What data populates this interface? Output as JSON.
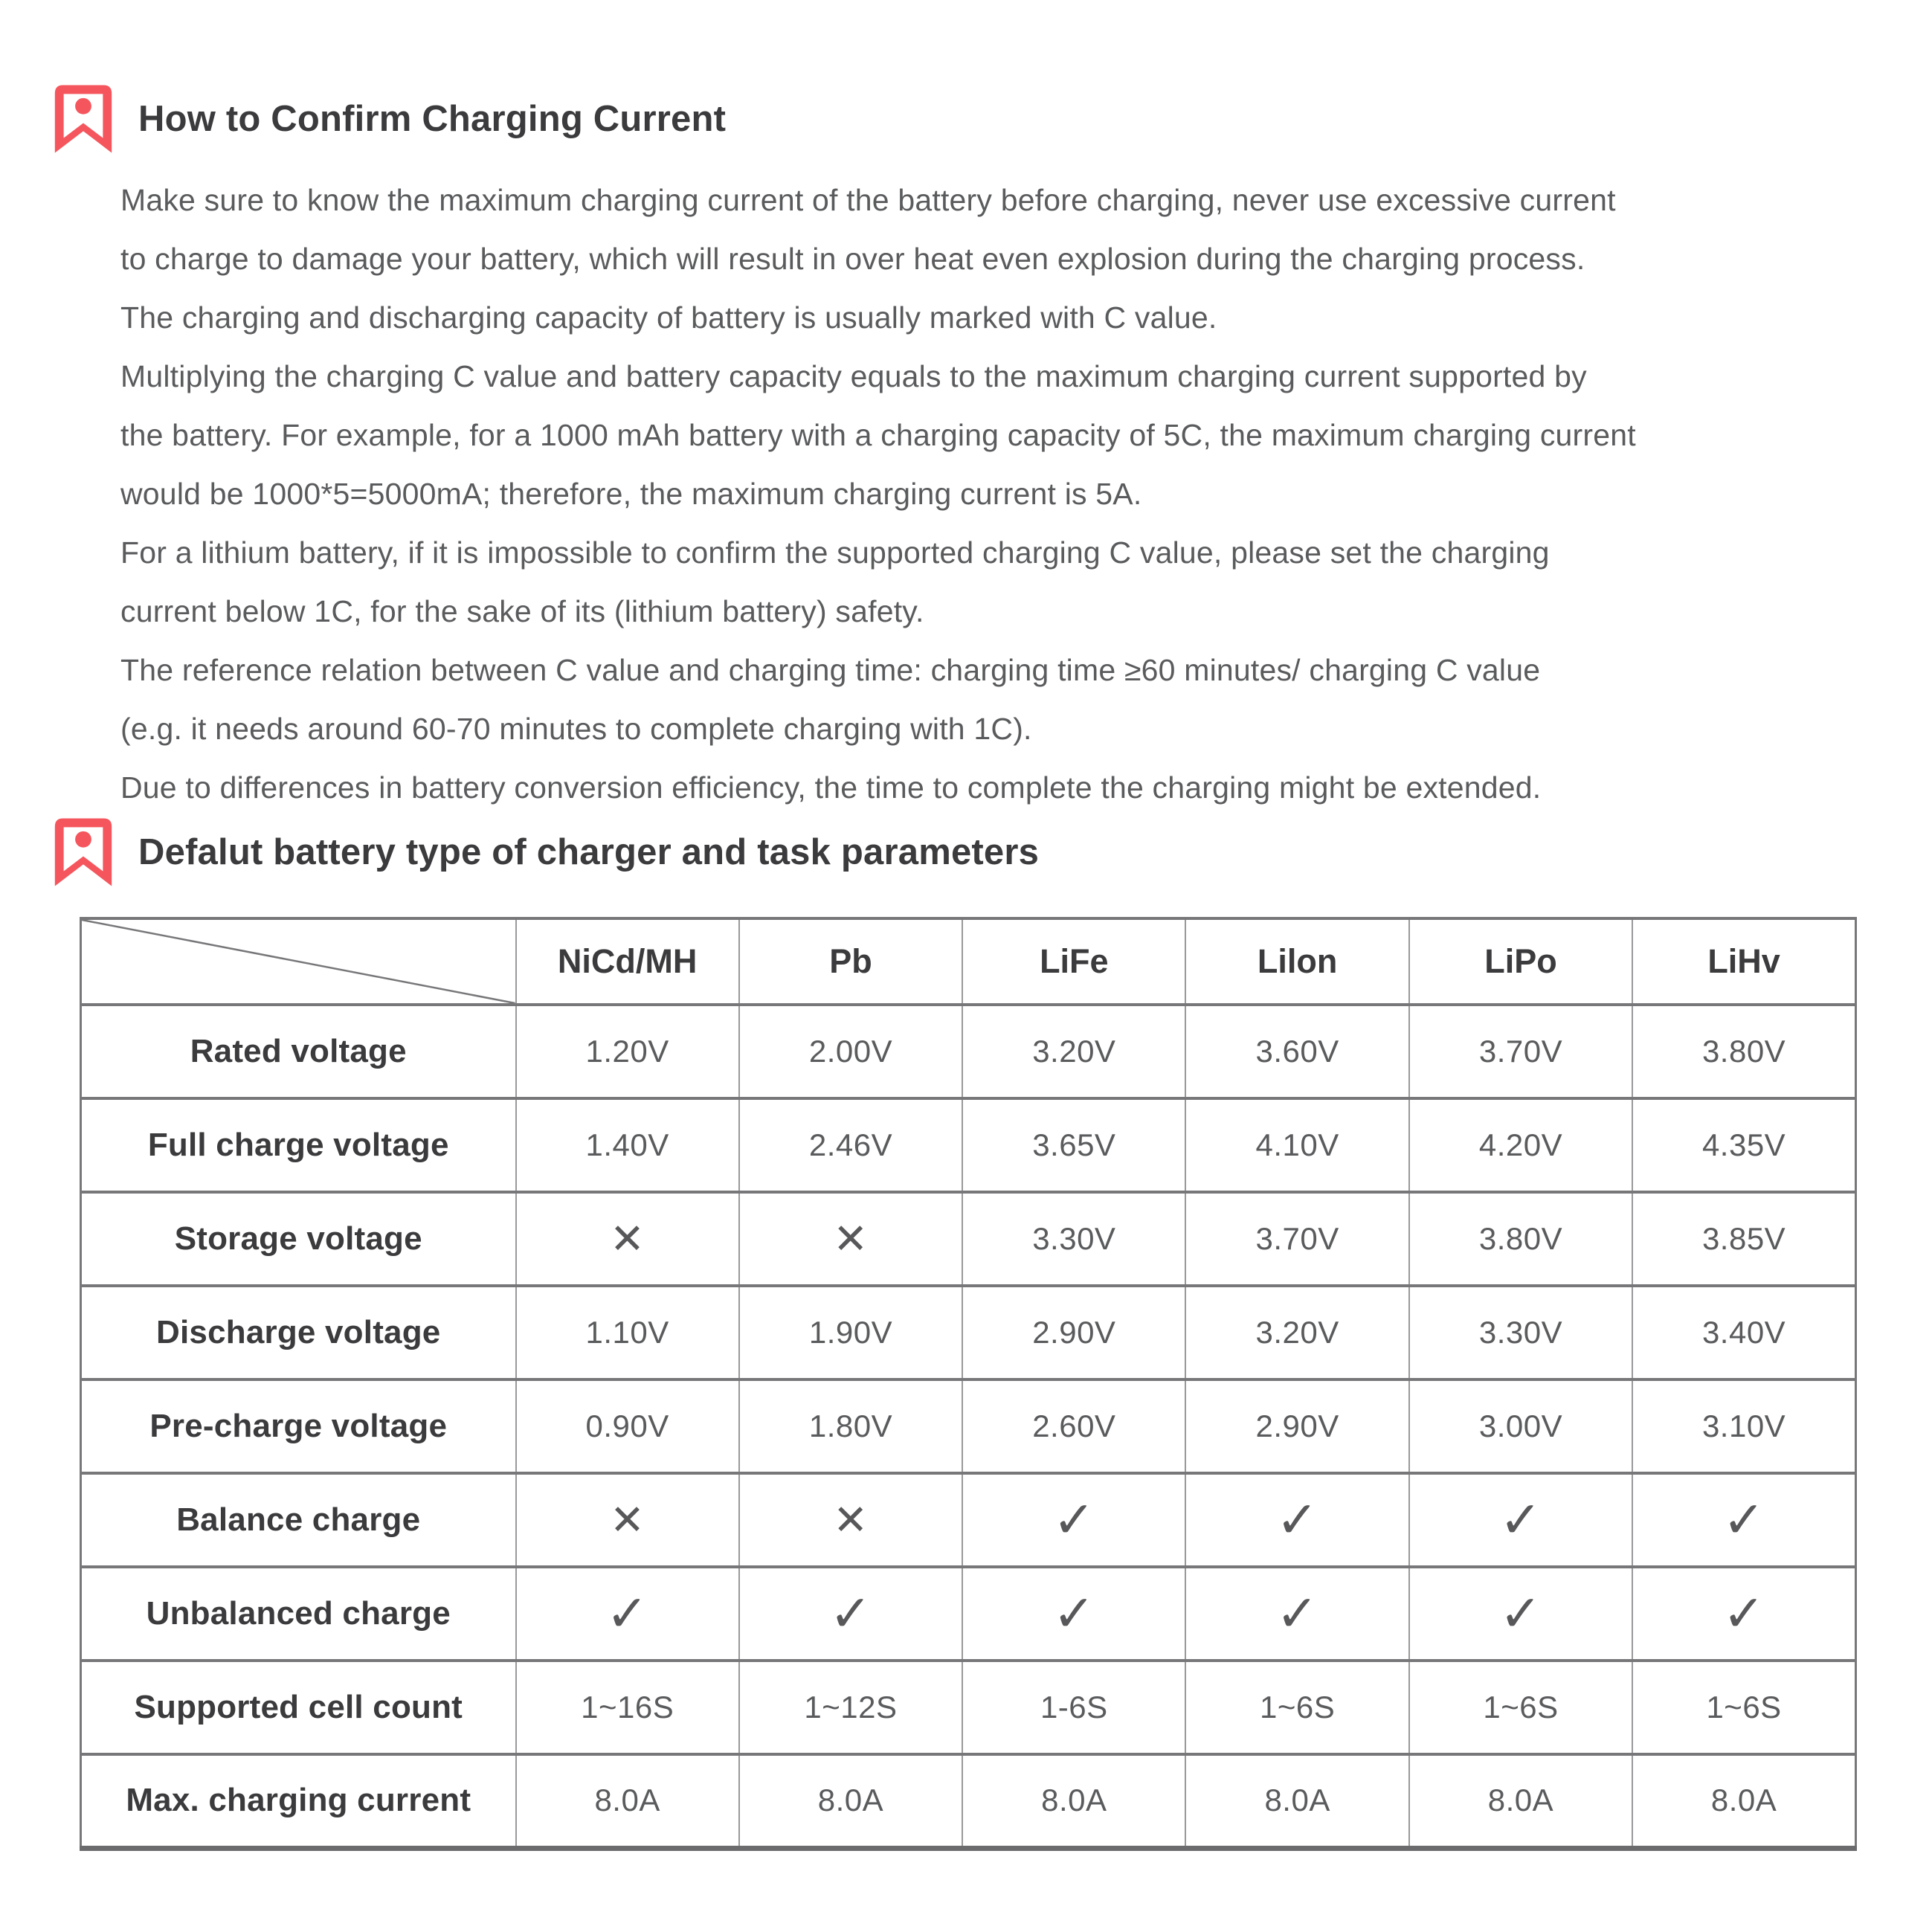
{
  "page": {
    "colors": {
      "accent_red": "#F5565D",
      "heading_text": "#3b3b3d",
      "body_text": "#5a5b5d",
      "table_border_heavy": "#77777a",
      "table_border_light": "#99999b"
    }
  },
  "section1": {
    "icon": "bookmark-icon",
    "title": "How to Confirm Charging Current",
    "paragraphs": [
      [
        "Make sure to know the maximum charging current of the battery before charging, never use excessive current",
        "to charge to damage your battery, which will result in over heat even explosion during the charging process.",
        "The charging and discharging capacity of battery is usually marked with C value."
      ],
      [
        "Multiplying the charging C value and battery capacity equals to the maximum charging current supported by",
        "the battery. For example, for a 1000 mAh battery with a charging capacity of 5C, the maximum charging current",
        "would be 1000*5=5000mA; therefore, the maximum charging current is 5A."
      ],
      [
        "For a lithium battery, if it is impossible to confirm the supported charging C value, please set the charging",
        "current below 1C, for the sake of its (lithium battery) safety."
      ],
      [
        "The reference relation between C value and charging time: charging time ≥60 minutes/ charging C value",
        "(e.g. it needs around 60-70 minutes to complete charging with 1C)."
      ],
      [
        "Due to differences in battery conversion efficiency, the time to complete the charging might be extended."
      ]
    ]
  },
  "section2": {
    "icon": "bookmark-icon",
    "title": "Defalut battery type of charger and task parameters",
    "table": {
      "columns": [
        "NiCd/MH",
        "Pb",
        "LiFe",
        "Lilon",
        "LiPo",
        "LiHv"
      ],
      "glyphs": {
        "x": "✕",
        "check": "✓"
      },
      "rows": [
        {
          "label": "Rated voltage",
          "values": [
            "1.20V",
            "2.00V",
            "3.20V",
            "3.60V",
            "3.70V",
            "3.80V"
          ]
        },
        {
          "label": "Full charge voltage",
          "values": [
            "1.40V",
            "2.46V",
            "3.65V",
            "4.10V",
            "4.20V",
            "4.35V"
          ]
        },
        {
          "label": "Storage voltage",
          "values": [
            "x",
            "x",
            "3.30V",
            "3.70V",
            "3.80V",
            "3.85V"
          ]
        },
        {
          "label": "Discharge voltage",
          "values": [
            "1.10V",
            "1.90V",
            "2.90V",
            "3.20V",
            "3.30V",
            "3.40V"
          ]
        },
        {
          "label": "Pre-charge voltage",
          "values": [
            "0.90V",
            "1.80V",
            "2.60V",
            "2.90V",
            "3.00V",
            "3.10V"
          ]
        },
        {
          "label": "Balance charge",
          "values": [
            "x",
            "x",
            "check",
            "check",
            "check",
            "check"
          ]
        },
        {
          "label": "Unbalanced charge",
          "values": [
            "check",
            "check",
            "check",
            "check",
            "check",
            "check"
          ]
        },
        {
          "label": "Supported cell count",
          "values": [
            "1~16S",
            "1~12S",
            "1-6S",
            "1~6S",
            "1~6S",
            "1~6S"
          ]
        },
        {
          "label": "Max. charging current",
          "values": [
            "8.0A",
            "8.0A",
            "8.0A",
            "8.0A",
            "8.0A",
            "8.0A"
          ]
        }
      ]
    }
  }
}
